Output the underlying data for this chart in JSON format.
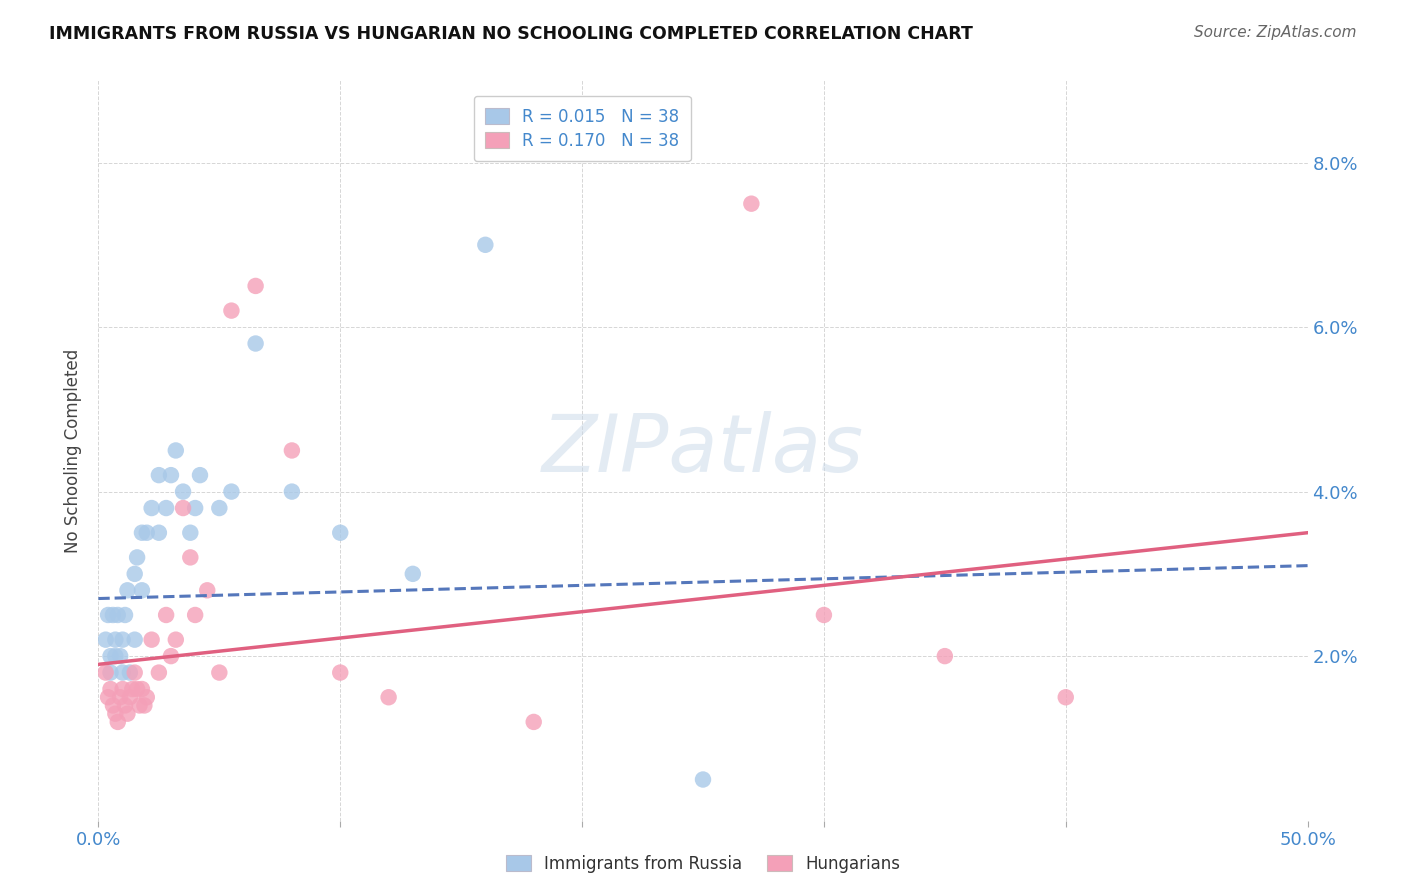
{
  "title": "IMMIGRANTS FROM RUSSIA VS HUNGARIAN NO SCHOOLING COMPLETED CORRELATION CHART",
  "source": "Source: ZipAtlas.com",
  "ylabel": "No Schooling Completed",
  "xlim": [
    0.0,
    0.5
  ],
  "ylim": [
    0.0,
    0.09
  ],
  "xtick_vals": [
    0.0,
    0.1,
    0.2,
    0.3,
    0.4,
    0.5
  ],
  "xtick_labels": [
    "0.0%",
    "",
    "",
    "",
    "",
    "50.0%"
  ],
  "ytick_vals": [
    0.0,
    0.02,
    0.04,
    0.06,
    0.08
  ],
  "ytick_labels": [
    "",
    "2.0%",
    "4.0%",
    "6.0%",
    "8.0%"
  ],
  "R_russia": 0.015,
  "N_russia": 38,
  "R_hungarian": 0.17,
  "N_hungarian": 38,
  "color_russia": "#a8c8e8",
  "color_hungarian": "#f4a0b8",
  "color_russia_line": "#5577bb",
  "color_hungarian_line": "#e06080",
  "color_axis_labels": "#4488cc",
  "watermark": "ZIPatlas",
  "background_color": "#ffffff",
  "russia_x": [
    0.003,
    0.004,
    0.005,
    0.005,
    0.006,
    0.007,
    0.007,
    0.008,
    0.009,
    0.01,
    0.01,
    0.011,
    0.012,
    0.013,
    0.015,
    0.015,
    0.016,
    0.018,
    0.018,
    0.02,
    0.022,
    0.025,
    0.025,
    0.028,
    0.03,
    0.032,
    0.035,
    0.038,
    0.04,
    0.042,
    0.05,
    0.055,
    0.065,
    0.08,
    0.1,
    0.13,
    0.16,
    0.25
  ],
  "russia_y": [
    0.022,
    0.025,
    0.02,
    0.018,
    0.025,
    0.02,
    0.022,
    0.025,
    0.02,
    0.022,
    0.018,
    0.025,
    0.028,
    0.018,
    0.03,
    0.022,
    0.032,
    0.028,
    0.035,
    0.035,
    0.038,
    0.035,
    0.042,
    0.038,
    0.042,
    0.045,
    0.04,
    0.035,
    0.038,
    0.042,
    0.038,
    0.04,
    0.058,
    0.04,
    0.035,
    0.03,
    0.07,
    0.005
  ],
  "hungarian_x": [
    0.003,
    0.004,
    0.005,
    0.006,
    0.007,
    0.008,
    0.009,
    0.01,
    0.011,
    0.012,
    0.013,
    0.014,
    0.015,
    0.016,
    0.017,
    0.018,
    0.019,
    0.02,
    0.022,
    0.025,
    0.028,
    0.03,
    0.032,
    0.035,
    0.038,
    0.04,
    0.045,
    0.05,
    0.055,
    0.065,
    0.08,
    0.1,
    0.12,
    0.18,
    0.3,
    0.35,
    0.4,
    0.27
  ],
  "hungarian_y": [
    0.018,
    0.015,
    0.016,
    0.014,
    0.013,
    0.012,
    0.015,
    0.016,
    0.014,
    0.013,
    0.015,
    0.016,
    0.018,
    0.016,
    0.014,
    0.016,
    0.014,
    0.015,
    0.022,
    0.018,
    0.025,
    0.02,
    0.022,
    0.038,
    0.032,
    0.025,
    0.028,
    0.018,
    0.062,
    0.065,
    0.045,
    0.018,
    0.015,
    0.012,
    0.025,
    0.02,
    0.015,
    0.075
  ]
}
